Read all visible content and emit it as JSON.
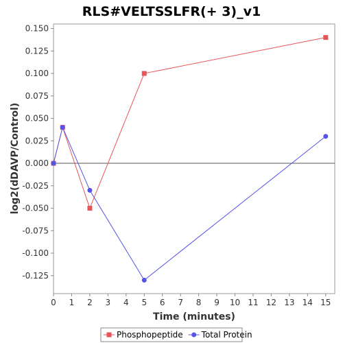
{
  "chart_data": {
    "type": "line",
    "title": "RLS#VELTSSLFR(+ 3)_v1",
    "xlabel": "Time (minutes)",
    "ylabel": "log2(dDAVP/Control)",
    "xlim": [
      0,
      15.5
    ],
    "ylim": [
      -0.145,
      0.155
    ],
    "xticks": [
      "0",
      "1",
      "2",
      "3",
      "4",
      "5",
      "6",
      "7",
      "8",
      "9",
      "10",
      "11",
      "12",
      "13",
      "14",
      "15"
    ],
    "yticks": [
      "0.150",
      "0.125",
      "0.100",
      "0.075",
      "0.050",
      "0.025",
      "0.000",
      "-0.025",
      "-0.050",
      "-0.075",
      "-0.100",
      "-0.125"
    ],
    "legend_position": "bottom",
    "series": [
      {
        "name": "Phosphopeptide",
        "color": "#e8545a",
        "marker": "square",
        "x": [
          0,
          0.5,
          2,
          5,
          15
        ],
        "y": [
          0.0,
          0.04,
          -0.05,
          0.1,
          0.14
        ]
      },
      {
        "name": "Total Protein",
        "color": "#5454e8",
        "marker": "circle",
        "x": [
          0,
          0.5,
          2,
          5,
          15
        ],
        "y": [
          0.0,
          0.04,
          -0.03,
          -0.13,
          0.03
        ]
      }
    ]
  }
}
